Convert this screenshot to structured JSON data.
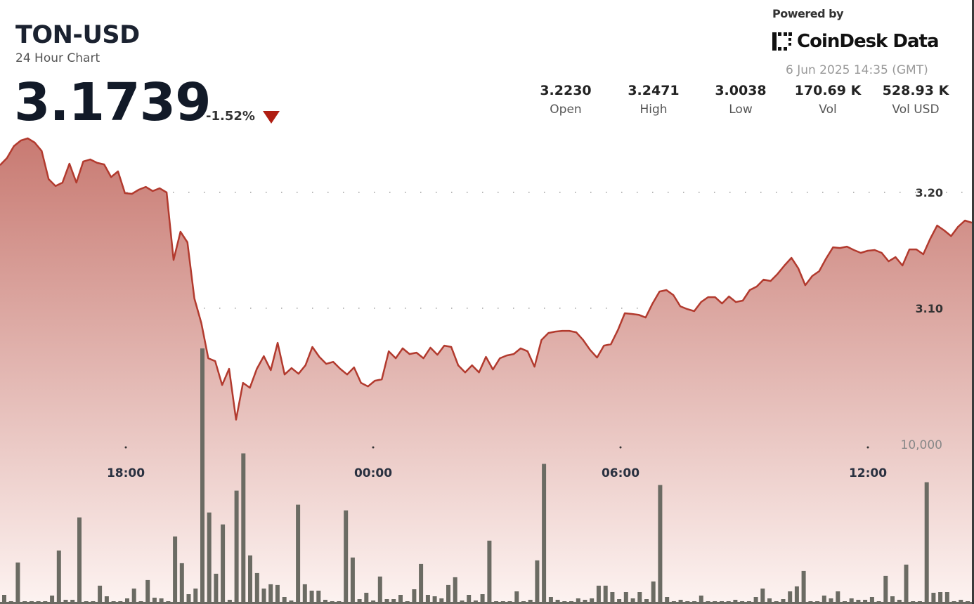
{
  "header": {
    "symbol": "TON-USD",
    "subtitle": "24 Hour Chart",
    "price": "3.1739",
    "change": "-1.52%",
    "change_direction": "down",
    "powered_by": "Powered by",
    "brand": "CoinDesk Data",
    "timestamp": "6 Jun 2025 14:35 (GMT)"
  },
  "stats": [
    {
      "value": "3.2230",
      "label": "Open"
    },
    {
      "value": "3.2471",
      "label": "High"
    },
    {
      "value": "3.0038",
      "label": "Low"
    },
    {
      "value": "170.69 K",
      "label": "Vol"
    },
    {
      "value": "528.93 K",
      "label": "Vol USD"
    }
  ],
  "colors": {
    "line": "#b23a2e",
    "area_top": "#c87a72",
    "area_bottom": "#fdf3f1",
    "volume": "#6b6b63",
    "down": "#b01e12"
  },
  "chart_data": [
    {
      "type": "area",
      "ylim": [
        2.845,
        3.366
      ],
      "grid": true,
      "y_ticks": [
        {
          "value": 3.2,
          "label": "3.20"
        },
        {
          "value": 3.1,
          "label": "3.10"
        }
      ],
      "x_ticks": [
        "18:00",
        "00:00",
        "06:00",
        "12:00"
      ],
      "values": [
        3.2236,
        3.2297,
        3.24,
        3.2448,
        3.2467,
        3.243,
        3.2358,
        3.2115,
        3.2055,
        3.2085,
        3.2248,
        3.2085,
        3.2267,
        3.2285,
        3.2255,
        3.2242,
        3.2133,
        3.2182,
        3.1994,
        3.1988,
        3.2024,
        3.2048,
        3.2012,
        3.2036,
        3.2,
        3.1418,
        3.1661,
        3.157,
        3.1085,
        3.0873,
        3.057,
        3.0545,
        3.0339,
        3.0479,
        3.004,
        3.0358,
        3.0315,
        3.0479,
        3.0588,
        3.0467,
        3.0703,
        3.043,
        3.0485,
        3.0436,
        3.0509,
        3.0667,
        3.0582,
        3.0521,
        3.0539,
        3.0479,
        3.043,
        3.0491,
        3.0358,
        3.0327,
        3.0376,
        3.0388,
        3.063,
        3.057,
        3.0655,
        3.0606,
        3.0618,
        3.057,
        3.0661,
        3.06,
        3.0679,
        3.0667,
        3.0509,
        3.0448,
        3.0509,
        3.0448,
        3.0582,
        3.0473,
        3.057,
        3.0594,
        3.0606,
        3.0655,
        3.063,
        3.0497,
        3.0727,
        3.0788,
        3.08,
        3.0806,
        3.0806,
        3.0794,
        3.0727,
        3.0642,
        3.0576,
        3.0679,
        3.0691,
        3.0812,
        3.0958,
        3.0952,
        3.0945,
        3.0921,
        3.1042,
        3.1145,
        3.1158,
        3.1115,
        3.1018,
        3.0994,
        3.0976,
        3.1055,
        3.1097,
        3.1097,
        3.1042,
        3.1103,
        3.1055,
        3.1067,
        3.1158,
        3.1188,
        3.1248,
        3.1236,
        3.1297,
        3.137,
        3.1436,
        3.1345,
        3.12,
        3.1279,
        3.1321,
        3.143,
        3.1527,
        3.1521,
        3.1533,
        3.1503,
        3.1479,
        3.1497,
        3.1503,
        3.1479,
        3.1406,
        3.1442,
        3.137,
        3.1509,
        3.1509,
        3.1467,
        3.16,
        3.1715,
        3.1673,
        3.1624,
        3.1703,
        3.1758,
        3.1739
      ]
    },
    {
      "type": "bar",
      "ylim": [
        0,
        38260
      ],
      "y_ticks": [
        {
          "value": 10000,
          "label": "10,000"
        }
      ],
      "values": [
        446,
        45,
        2498,
        45,
        45,
        45,
        45,
        401,
        3256,
        134,
        134,
        5352,
        45,
        45,
        1026,
        357,
        45,
        45,
        223,
        847,
        45,
        1383,
        268,
        223,
        45,
        4148,
        2453,
        491,
        847,
        16056,
        5664,
        1784,
        4906,
        134,
        7047,
        9411,
        2944,
        1829,
        847,
        1115,
        1070,
        312,
        90,
        6155,
        1115,
        714,
        714,
        134,
        45,
        45,
        5798,
        2810,
        178,
        580,
        90,
        1606,
        178,
        178,
        446,
        45,
        803,
        2408,
        446,
        357,
        223,
        1070,
        1561,
        90,
        446,
        90,
        491,
        3880,
        45,
        45,
        45,
        669,
        45,
        134,
        2631,
        8742,
        312,
        134,
        45,
        45,
        223,
        134,
        223,
        1026,
        1026,
        624,
        178,
        624,
        223,
        624,
        178,
        1293,
        7404,
        312,
        45,
        134,
        45,
        45,
        401,
        45,
        45,
        45,
        45,
        134,
        45,
        45,
        312,
        847,
        223,
        45,
        178,
        669,
        981,
        1962,
        45,
        45,
        401,
        223,
        669,
        45,
        223,
        134,
        134,
        312,
        45,
        1650,
        357,
        134,
        2364,
        45,
        45,
        7582,
        580,
        624,
        624,
        45,
        134,
        45
      ]
    }
  ]
}
